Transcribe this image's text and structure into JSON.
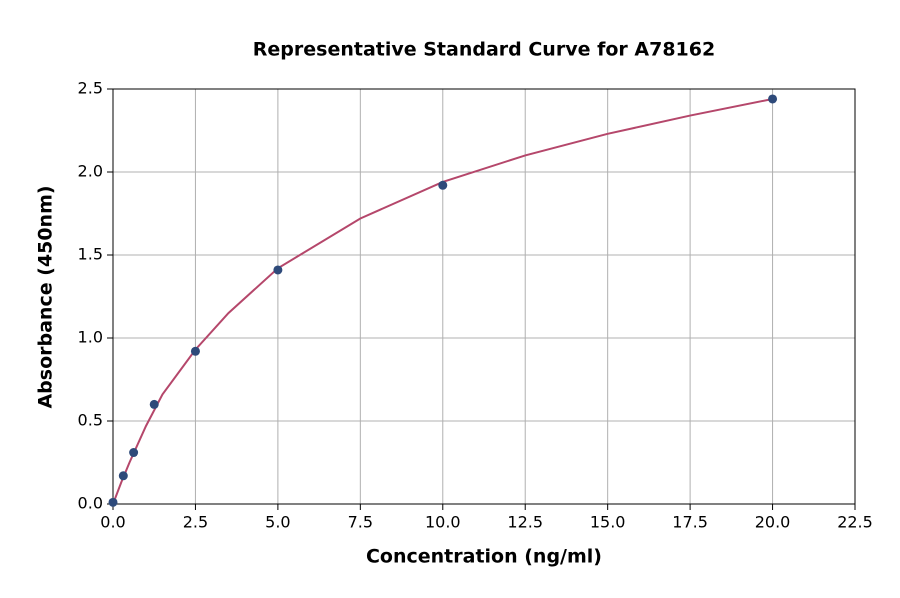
{
  "chart_data": {
    "type": "scatter",
    "title": "Representative Standard Curve for A78162",
    "x_label": "Concentration (ng/ml)",
    "y_label": "Absorbance (450nm)",
    "series": [
      {
        "x": [
          0,
          0.3125,
          0.625,
          1.25,
          2.5,
          5,
          10,
          20
        ],
        "values": [
          0.01,
          0.17,
          0.31,
          0.6,
          0.92,
          1.41,
          1.92,
          2.44
        ],
        "color": "#2e4a7a"
      }
    ],
    "curve": {
      "x": [
        0,
        0.25,
        0.5,
        1,
        1.5,
        2.5,
        3.5,
        5,
        7.5,
        10,
        12.5,
        15,
        17.5,
        20
      ],
      "values": [
        0,
        0.13,
        0.25,
        0.47,
        0.66,
        0.93,
        1.15,
        1.42,
        1.72,
        1.94,
        2.1,
        2.23,
        2.34,
        2.44
      ],
      "color": "#b5476b"
    },
    "xlim": [
      0,
      22.5
    ],
    "ylim": [
      0,
      2.5
    ],
    "xticks": [
      {
        "value": 0,
        "label": "0.0"
      },
      {
        "value": 2.5,
        "label": "2.5"
      },
      {
        "value": 5,
        "label": "5.0"
      },
      {
        "value": 7.5,
        "label": "7.5"
      },
      {
        "value": 10,
        "label": "10.0"
      },
      {
        "value": 12.5,
        "label": "12.5"
      },
      {
        "value": 15,
        "label": "15.0"
      },
      {
        "value": 17.5,
        "label": "17.5"
      },
      {
        "value": 20,
        "label": "20.0"
      },
      {
        "value": 22.5,
        "label": "22.5"
      }
    ],
    "yticks": [
      {
        "value": 0,
        "label": "0.0"
      },
      {
        "value": 0.5,
        "label": "0.5"
      },
      {
        "value": 1,
        "label": "1.0"
      },
      {
        "value": 1.5,
        "label": "1.5"
      },
      {
        "value": 2,
        "label": "2.0"
      },
      {
        "value": 2.5,
        "label": "2.5"
      }
    ],
    "grid": true
  }
}
